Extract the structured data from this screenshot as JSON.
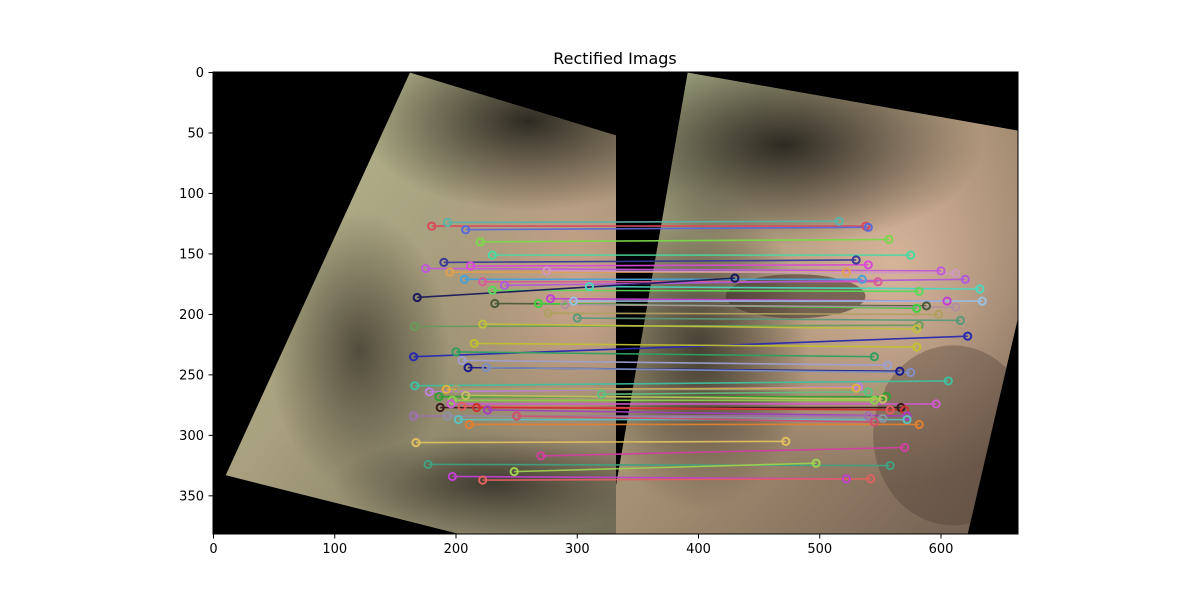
{
  "title": "Rectified Imags",
  "axes": {
    "x_ticks": [
      0,
      100,
      200,
      300,
      400,
      500,
      600
    ],
    "y_ticks": [
      0,
      50,
      100,
      150,
      200,
      250,
      300,
      350
    ],
    "x_range": [
      0,
      664
    ],
    "y_range": [
      0,
      382
    ]
  },
  "left_image": {
    "x_extent": [
      0,
      332
    ],
    "polygon": [
      [
        162,
        0
      ],
      [
        332,
        52
      ],
      [
        332,
        382
      ],
      [
        204,
        382
      ],
      [
        10,
        333
      ]
    ]
  },
  "right_image": {
    "x_extent": [
      332,
      664
    ],
    "polygon": [
      [
        391,
        0
      ],
      [
        664,
        48
      ],
      [
        664,
        201
      ],
      [
        622,
        382
      ],
      [
        332,
        382
      ],
      [
        332,
        341
      ]
    ]
  },
  "matches": [
    {
      "x1": 193,
      "y1": 124,
      "x2": 516,
      "y2": 123,
      "color": "#5ab4a8"
    },
    {
      "x1": 180,
      "y1": 127,
      "x2": 538,
      "y2": 127,
      "color": "#d94a5a"
    },
    {
      "x1": 208,
      "y1": 130,
      "x2": 540,
      "y2": 128,
      "color": "#5a6ad9"
    },
    {
      "x1": 220,
      "y1": 140,
      "x2": 557,
      "y2": 138,
      "color": "#7ad94a"
    },
    {
      "x1": 230,
      "y1": 151,
      "x2": 575,
      "y2": 151,
      "color": "#4ad9a0"
    },
    {
      "x1": 190,
      "y1": 157,
      "x2": 530,
      "y2": 155,
      "color": "#3a3a9a"
    },
    {
      "x1": 212,
      "y1": 160,
      "x2": 540,
      "y2": 159,
      "color": "#d94ad9"
    },
    {
      "x1": 175,
      "y1": 162,
      "x2": 600,
      "y2": 164,
      "color": "#c05ad9"
    },
    {
      "x1": 195,
      "y1": 165,
      "x2": 522,
      "y2": 165,
      "color": "#e0a050"
    },
    {
      "x1": 275,
      "y1": 164,
      "x2": 612,
      "y2": 166,
      "color": "#d09ac0"
    },
    {
      "x1": 207,
      "y1": 171,
      "x2": 535,
      "y2": 171,
      "color": "#4aa0d9"
    },
    {
      "x1": 222,
      "y1": 173,
      "x2": 548,
      "y2": 173,
      "color": "#d95a9a"
    },
    {
      "x1": 240,
      "y1": 176,
      "x2": 620,
      "y2": 171,
      "color": "#b05ad9"
    },
    {
      "x1": 310,
      "y1": 177,
      "x2": 632,
      "y2": 179,
      "color": "#4ad9c0"
    },
    {
      "x1": 230,
      "y1": 180,
      "x2": 582,
      "y2": 181,
      "color": "#5ad95a"
    },
    {
      "x1": 168,
      "y1": 186,
      "x2": 430,
      "y2": 170,
      "color": "#1a1a5a"
    },
    {
      "x1": 278,
      "y1": 187,
      "x2": 605,
      "y2": 189,
      "color": "#c040d0"
    },
    {
      "x1": 297,
      "y1": 189,
      "x2": 634,
      "y2": 189,
      "color": "#9ac0e0"
    },
    {
      "x1": 232,
      "y1": 191,
      "x2": 588,
      "y2": 193,
      "color": "#4a5a3a"
    },
    {
      "x1": 268,
      "y1": 191,
      "x2": 580,
      "y2": 195,
      "color": "#40d040"
    },
    {
      "x1": 290,
      "y1": 192,
      "x2": 612,
      "y2": 194,
      "color": "#b090a0"
    },
    {
      "x1": 276,
      "y1": 199,
      "x2": 598,
      "y2": 200,
      "color": "#b0a060"
    },
    {
      "x1": 300,
      "y1": 203,
      "x2": 616,
      "y2": 205,
      "color": "#5a9a7a"
    },
    {
      "x1": 166,
      "y1": 210,
      "x2": 582,
      "y2": 209,
      "color": "#6a9a5a"
    },
    {
      "x1": 222,
      "y1": 208,
      "x2": 580,
      "y2": 212,
      "color": "#c0c040"
    },
    {
      "x1": 165,
      "y1": 235,
      "x2": 622,
      "y2": 218,
      "color": "#2a2ab0"
    },
    {
      "x1": 215,
      "y1": 224,
      "x2": 580,
      "y2": 227,
      "color": "#c0c030"
    },
    {
      "x1": 205,
      "y1": 238,
      "x2": 556,
      "y2": 242,
      "color": "#a0a0d0"
    },
    {
      "x1": 210,
      "y1": 244,
      "x2": 566,
      "y2": 247,
      "color": "#1a1a8a"
    },
    {
      "x1": 225,
      "y1": 244,
      "x2": 575,
      "y2": 248,
      "color": "#8090c0"
    },
    {
      "x1": 200,
      "y1": 231,
      "x2": 545,
      "y2": 235,
      "color": "#30a060"
    },
    {
      "x1": 166,
      "y1": 259,
      "x2": 606,
      "y2": 255,
      "color": "#40c0a0"
    },
    {
      "x1": 178,
      "y1": 264,
      "x2": 532,
      "y2": 260,
      "color": "#c080e0"
    },
    {
      "x1": 192,
      "y1": 262,
      "x2": 530,
      "y2": 261,
      "color": "#e0b040"
    },
    {
      "x1": 200,
      "y1": 262,
      "x2": 550,
      "y2": 262,
      "color": "#a0a070"
    },
    {
      "x1": 186,
      "y1": 268,
      "x2": 555,
      "y2": 268,
      "color": "#30a030"
    },
    {
      "x1": 208,
      "y1": 267,
      "x2": 552,
      "y2": 270,
      "color": "#c0c060"
    },
    {
      "x1": 197,
      "y1": 271,
      "x2": 545,
      "y2": 271,
      "color": "#8ad04a"
    },
    {
      "x1": 320,
      "y1": 266,
      "x2": 540,
      "y2": 264,
      "color": "#60c080"
    },
    {
      "x1": 196,
      "y1": 274,
      "x2": 596,
      "y2": 274,
      "color": "#d05ad0"
    },
    {
      "x1": 187,
      "y1": 277,
      "x2": 567,
      "y2": 277,
      "color": "#3a1a1a"
    },
    {
      "x1": 205,
      "y1": 276,
      "x2": 558,
      "y2": 279,
      "color": "#e06060"
    },
    {
      "x1": 217,
      "y1": 277,
      "x2": 570,
      "y2": 279,
      "color": "#d03030"
    },
    {
      "x1": 226,
      "y1": 279,
      "x2": 572,
      "y2": 284,
      "color": "#a040c0"
    },
    {
      "x1": 165,
      "y1": 284,
      "x2": 540,
      "y2": 284,
      "color": "#a070b0"
    },
    {
      "x1": 193,
      "y1": 284,
      "x2": 552,
      "y2": 286,
      "color": "#9090a0"
    },
    {
      "x1": 202,
      "y1": 287,
      "x2": 572,
      "y2": 287,
      "color": "#5ac0c0"
    },
    {
      "x1": 250,
      "y1": 284,
      "x2": 545,
      "y2": 289,
      "color": "#d05070"
    },
    {
      "x1": 211,
      "y1": 291,
      "x2": 582,
      "y2": 291,
      "color": "#e08030"
    },
    {
      "x1": 167,
      "y1": 306,
      "x2": 472,
      "y2": 305,
      "color": "#e0c060"
    },
    {
      "x1": 270,
      "y1": 317,
      "x2": 570,
      "y2": 310,
      "color": "#d040a0"
    },
    {
      "x1": 177,
      "y1": 324,
      "x2": 558,
      "y2": 325,
      "color": "#40a080"
    },
    {
      "x1": 248,
      "y1": 330,
      "x2": 497,
      "y2": 323,
      "color": "#a0d050"
    },
    {
      "x1": 197,
      "y1": 334,
      "x2": 522,
      "y2": 336,
      "color": "#c040d0"
    },
    {
      "x1": 222,
      "y1": 337,
      "x2": 542,
      "y2": 336,
      "color": "#e06060"
    }
  ]
}
